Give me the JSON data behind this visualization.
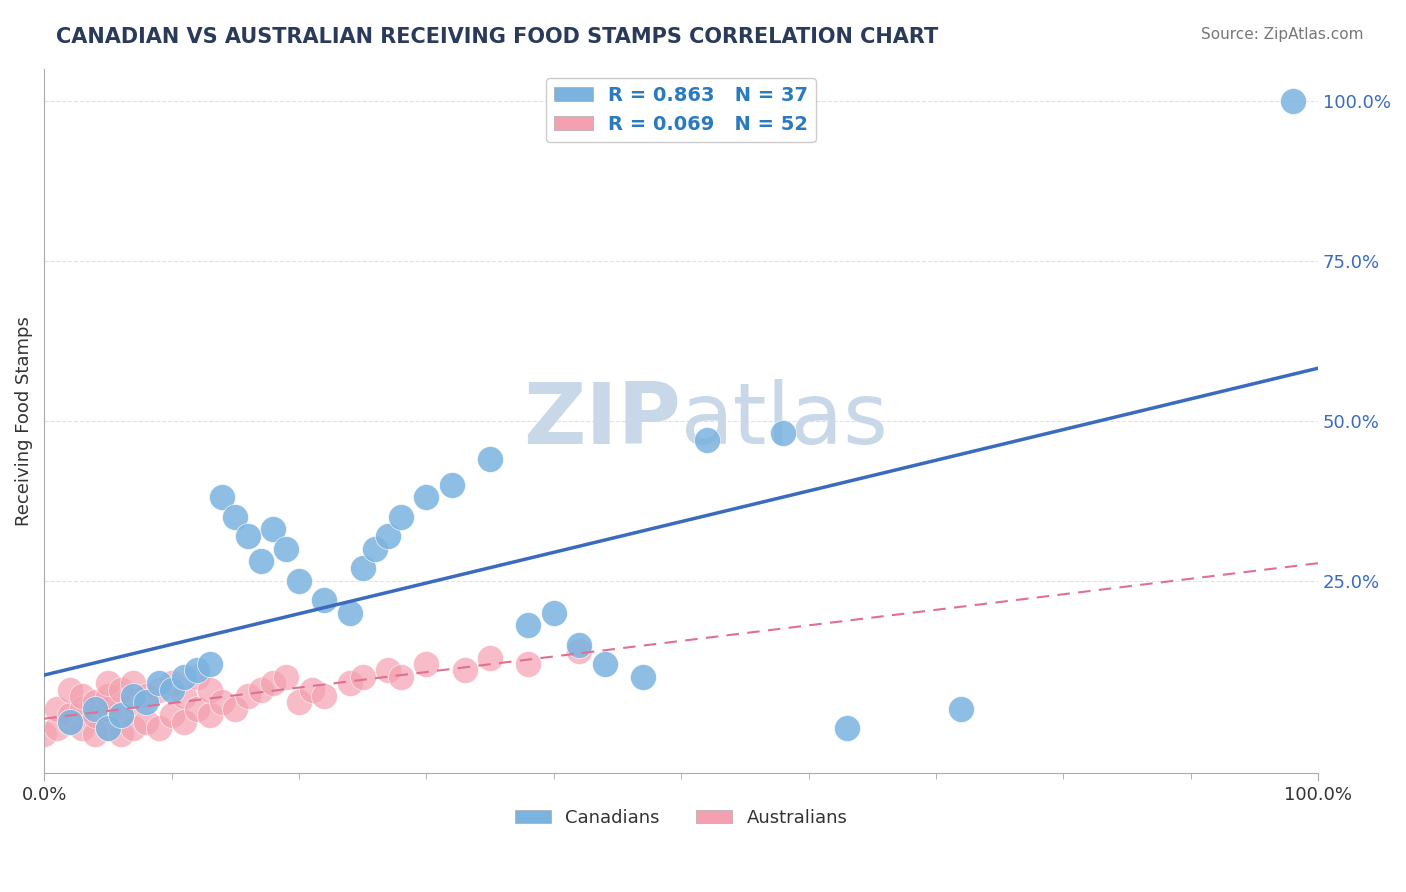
{
  "title": "CANADIAN VS AUSTRALIAN RECEIVING FOOD STAMPS CORRELATION CHART",
  "source": "Source: ZipAtlas.com",
  "ylabel": "Receiving Food Stamps",
  "xlabel": "",
  "xlim": [
    0.0,
    1.0
  ],
  "ylim": [
    -0.05,
    1.05
  ],
  "xtick_labels": [
    "0.0%",
    "100.0%"
  ],
  "ytick_labels": [
    "25.0%",
    "50.0%",
    "75.0%",
    "100.0%"
  ],
  "ytick_vals": [
    0.25,
    0.5,
    0.75,
    1.0
  ],
  "canadian_R": 0.863,
  "canadian_N": 37,
  "australian_R": 0.069,
  "australian_N": 52,
  "canadian_color": "#7ab3e0",
  "canadian_line_color": "#3a6bbf",
  "australian_color": "#f4a0b0",
  "australian_line_color": "#e07090",
  "watermark_zip": "ZIP",
  "watermark_atlas": "atlas",
  "watermark_color": "#c8d8e8",
  "background_color": "#ffffff",
  "grid_color": "#d0d8e0",
  "title_color": "#2a3a5a",
  "legend_text_color": "#2a7ac0",
  "canadian_x": [
    0.02,
    0.04,
    0.05,
    0.06,
    0.07,
    0.08,
    0.09,
    0.1,
    0.11,
    0.12,
    0.13,
    0.14,
    0.15,
    0.16,
    0.17,
    0.18,
    0.19,
    0.2,
    0.22,
    0.24,
    0.25,
    0.26,
    0.27,
    0.28,
    0.3,
    0.32,
    0.35,
    0.38,
    0.4,
    0.42,
    0.44,
    0.47,
    0.52,
    0.58,
    0.63,
    0.72,
    0.98
  ],
  "canadian_y": [
    0.03,
    0.05,
    0.02,
    0.04,
    0.07,
    0.06,
    0.09,
    0.08,
    0.1,
    0.11,
    0.12,
    0.38,
    0.35,
    0.32,
    0.28,
    0.33,
    0.3,
    0.25,
    0.22,
    0.2,
    0.27,
    0.3,
    0.32,
    0.35,
    0.38,
    0.4,
    0.44,
    0.18,
    0.2,
    0.15,
    0.12,
    0.1,
    0.47,
    0.48,
    0.02,
    0.05,
    1.0
  ],
  "australian_x": [
    0.0,
    0.01,
    0.01,
    0.02,
    0.02,
    0.02,
    0.03,
    0.03,
    0.03,
    0.04,
    0.04,
    0.04,
    0.05,
    0.05,
    0.05,
    0.05,
    0.06,
    0.06,
    0.06,
    0.07,
    0.07,
    0.07,
    0.08,
    0.08,
    0.09,
    0.09,
    0.1,
    0.1,
    0.11,
    0.11,
    0.12,
    0.12,
    0.13,
    0.13,
    0.14,
    0.15,
    0.16,
    0.17,
    0.18,
    0.19,
    0.2,
    0.21,
    0.22,
    0.24,
    0.25,
    0.27,
    0.28,
    0.3,
    0.33,
    0.35,
    0.38,
    0.42
  ],
  "australian_y": [
    0.01,
    0.02,
    0.05,
    0.03,
    0.04,
    0.08,
    0.02,
    0.05,
    0.07,
    0.01,
    0.04,
    0.06,
    0.02,
    0.05,
    0.07,
    0.09,
    0.01,
    0.04,
    0.08,
    0.02,
    0.06,
    0.09,
    0.03,
    0.07,
    0.02,
    0.08,
    0.04,
    0.09,
    0.03,
    0.07,
    0.05,
    0.1,
    0.04,
    0.08,
    0.06,
    0.05,
    0.07,
    0.08,
    0.09,
    0.1,
    0.06,
    0.08,
    0.07,
    0.09,
    0.1,
    0.11,
    0.1,
    0.12,
    0.11,
    0.13,
    0.12,
    0.14
  ]
}
